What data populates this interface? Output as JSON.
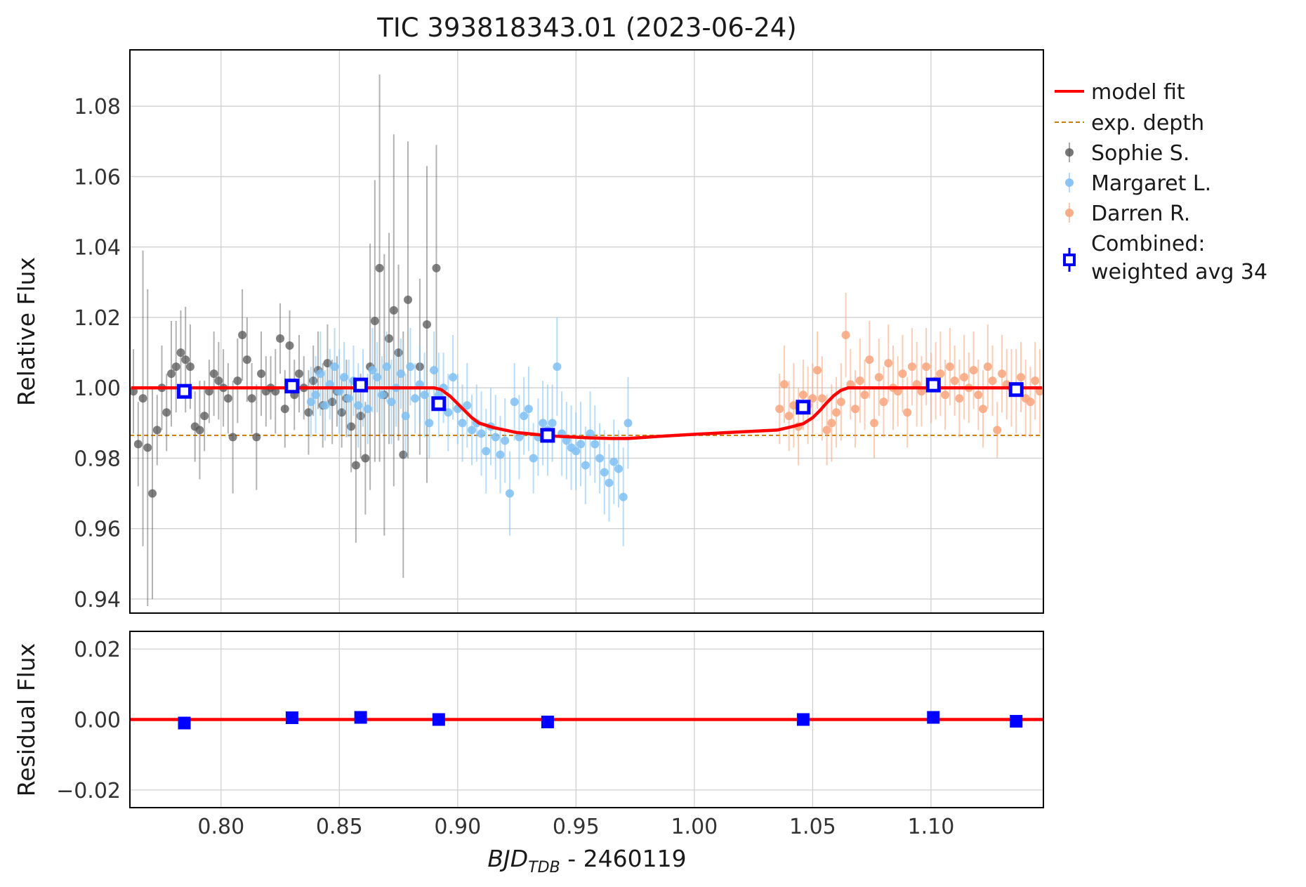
{
  "chart_data": {
    "type": "scatter",
    "title": "TIC 393818343.01  (2023-06-24)",
    "xlabel": {
      "main": "BJD",
      "sub": "TDB",
      "rest": " - 2460119"
    },
    "ylabel_top": "Relative Flux",
    "ylabel_bottom": "Residual Flux",
    "xlim": [
      0.7615,
      1.1475
    ],
    "ylim_top": [
      0.936,
      1.096
    ],
    "ylim_bottom": [
      -0.025,
      0.025
    ],
    "xticks": [
      0.8,
      0.85,
      0.9,
      0.95,
      1.0,
      1.05,
      1.1
    ],
    "xtick_labels": [
      "0.80",
      "0.85",
      "0.90",
      "0.95",
      "1.00",
      "1.05",
      "1.10"
    ],
    "yticks_top": [
      0.94,
      0.96,
      0.98,
      1.0,
      1.02,
      1.04,
      1.06,
      1.08
    ],
    "ytick_labels_top": [
      "0.94",
      "0.96",
      "0.98",
      "1.00",
      "1.02",
      "1.04",
      "1.06",
      "1.08"
    ],
    "yticks_bottom": [
      -0.02,
      0.0,
      0.02
    ],
    "ytick_labels_bottom": [
      "−0.02",
      "0.00",
      "0.02"
    ],
    "grid": true,
    "legend_position": "outside right",
    "expected_depth": 0.9865,
    "legend": [
      {
        "label": "model fit",
        "kind": "line",
        "color": "#ff0000"
      },
      {
        "label": "exp. depth",
        "kind": "dashed",
        "color": "#cc7a00"
      },
      {
        "label": "Sophie S.",
        "kind": "point",
        "color": "#555555"
      },
      {
        "label": "Margaret L.",
        "kind": "point",
        "color": "#7fbff2"
      },
      {
        "label": "Darren R.",
        "kind": "point",
        "color": "#f7a47c"
      },
      {
        "label": "Combined:",
        "label2": "weighted avg 34",
        "kind": "square",
        "color": "#0000ff"
      }
    ],
    "model_fit": {
      "color": "#ff0000",
      "x": [
        0.762,
        0.89,
        0.893,
        0.897,
        0.9,
        0.903,
        0.906,
        0.909,
        0.915,
        0.925,
        0.94,
        0.955,
        0.965,
        0.972,
        0.985,
        1.0,
        1.02,
        1.035,
        1.041,
        1.046,
        1.05,
        1.053,
        1.056,
        1.059,
        1.062,
        1.065,
        1.068,
        1.147
      ],
      "y": [
        1.0,
        1.0,
        0.9995,
        0.9975,
        0.9955,
        0.9935,
        0.9915,
        0.99,
        0.9887,
        0.9873,
        0.9863,
        0.9858,
        0.9856,
        0.9856,
        0.9862,
        0.9868,
        0.9875,
        0.988,
        0.9889,
        0.9898,
        0.9915,
        0.9935,
        0.9958,
        0.9978,
        0.9993,
        1.0,
        1.0,
        1.0
      ]
    },
    "series": [
      {
        "name": "Sophie S.",
        "color": "#555555",
        "x": [
          0.763,
          0.765,
          0.767,
          0.769,
          0.771,
          0.773,
          0.775,
          0.777,
          0.779,
          0.781,
          0.783,
          0.785,
          0.787,
          0.789,
          0.791,
          0.793,
          0.795,
          0.797,
          0.799,
          0.801,
          0.803,
          0.805,
          0.807,
          0.809,
          0.811,
          0.813,
          0.815,
          0.817,
          0.819,
          0.821,
          0.823,
          0.825,
          0.827,
          0.829,
          0.831,
          0.833,
          0.835,
          0.837,
          0.839,
          0.841,
          0.843,
          0.845,
          0.847,
          0.849,
          0.851,
          0.853,
          0.855,
          0.857,
          0.859,
          0.861,
          0.863,
          0.865,
          0.867,
          0.869,
          0.871,
          0.873,
          0.875,
          0.877,
          0.879,
          0.884,
          0.887,
          0.891
        ],
        "y": [
          0.999,
          0.984,
          0.997,
          0.983,
          0.97,
          0.988,
          1.0,
          0.993,
          1.004,
          1.006,
          1.01,
          1.008,
          1.006,
          0.989,
          0.988,
          0.992,
          0.999,
          1.004,
          1.002,
          1.0,
          0.997,
          0.986,
          1.002,
          1.015,
          1.008,
          0.997,
          0.986,
          1.004,
          0.999,
          1.0,
          0.999,
          1.014,
          0.994,
          1.012,
          0.998,
          1.004,
          1.0,
          0.993,
          1.002,
          1.005,
          0.995,
          1.007,
          0.996,
          0.999,
          0.993,
          0.997,
          0.989,
          0.978,
          0.992,
          0.98,
          1.006,
          1.019,
          1.034,
          0.998,
          1.014,
          1.022,
          1.01,
          0.981,
          1.025,
          1.006,
          1.018,
          1.034
        ],
        "err": [
          0.012,
          0.012,
          0.042,
          0.045,
          0.03,
          0.01,
          0.012,
          0.011,
          0.015,
          0.013,
          0.012,
          0.015,
          0.012,
          0.01,
          0.014,
          0.01,
          0.009,
          0.012,
          0.011,
          0.011,
          0.01,
          0.016,
          0.012,
          0.013,
          0.012,
          0.01,
          0.015,
          0.012,
          0.01,
          0.009,
          0.012,
          0.01,
          0.011,
          0.01,
          0.01,
          0.011,
          0.009,
          0.012,
          0.01,
          0.011,
          0.012,
          0.011,
          0.012,
          0.01,
          0.01,
          0.011,
          0.013,
          0.022,
          0.012,
          0.016,
          0.035,
          0.04,
          0.055,
          0.04,
          0.03,
          0.05,
          0.025,
          0.035,
          0.045,
          0.025,
          0.045,
          0.035
        ]
      },
      {
        "name": "Margaret L.",
        "color": "#7fbff2",
        "x": [
          0.838,
          0.84,
          0.842,
          0.844,
          0.846,
          0.848,
          0.85,
          0.852,
          0.854,
          0.856,
          0.858,
          0.86,
          0.862,
          0.864,
          0.866,
          0.868,
          0.87,
          0.872,
          0.874,
          0.876,
          0.878,
          0.88,
          0.882,
          0.884,
          0.886,
          0.888,
          0.89,
          0.892,
          0.894,
          0.896,
          0.898,
          0.9,
          0.902,
          0.904,
          0.906,
          0.908,
          0.91,
          0.912,
          0.914,
          0.916,
          0.918,
          0.92,
          0.922,
          0.924,
          0.926,
          0.928,
          0.93,
          0.932,
          0.934,
          0.936,
          0.938,
          0.94,
          0.942,
          0.944,
          0.946,
          0.948,
          0.95,
          0.952,
          0.954,
          0.956,
          0.958,
          0.96,
          0.962,
          0.964,
          0.966,
          0.968,
          0.97,
          0.972
        ],
        "y": [
          0.996,
          0.998,
          1.004,
          0.995,
          1.001,
          1.006,
          0.999,
          1.003,
          0.997,
          1.002,
          0.995,
          1.0,
          0.994,
          1.005,
          1.003,
          0.998,
          1.006,
          0.996,
          1.0,
          1.004,
          0.992,
          1.006,
          0.997,
          1.001,
          0.998,
          0.99,
          1.005,
          0.998,
          1.0,
          0.993,
          1.003,
          0.994,
          0.99,
          0.995,
          0.988,
          0.99,
          0.987,
          0.982,
          0.989,
          0.986,
          0.981,
          0.985,
          0.97,
          0.996,
          0.986,
          0.992,
          0.994,
          0.98,
          0.986,
          0.99,
          0.988,
          0.99,
          1.006,
          0.987,
          0.985,
          0.983,
          0.982,
          0.984,
          0.978,
          0.987,
          0.984,
          0.98,
          0.976,
          0.973,
          0.979,
          0.977,
          0.969,
          0.99
        ],
        "err": [
          0.01,
          0.011,
          0.012,
          0.01,
          0.01,
          0.011,
          0.012,
          0.01,
          0.011,
          0.01,
          0.012,
          0.011,
          0.01,
          0.012,
          0.01,
          0.011,
          0.01,
          0.012,
          0.011,
          0.01,
          0.012,
          0.011,
          0.01,
          0.011,
          0.012,
          0.01,
          0.011,
          0.012,
          0.01,
          0.011,
          0.012,
          0.01,
          0.011,
          0.012,
          0.01,
          0.011,
          0.012,
          0.012,
          0.011,
          0.012,
          0.011,
          0.012,
          0.012,
          0.011,
          0.012,
          0.011,
          0.012,
          0.01,
          0.011,
          0.012,
          0.013,
          0.011,
          0.014,
          0.012,
          0.011,
          0.012,
          0.011,
          0.012,
          0.011,
          0.012,
          0.011,
          0.01,
          0.012,
          0.011,
          0.012,
          0.011,
          0.014,
          0.013
        ]
      },
      {
        "name": "Darren R.",
        "color": "#f7a47c",
        "x": [
          1.036,
          1.038,
          1.04,
          1.042,
          1.044,
          1.046,
          1.048,
          1.05,
          1.052,
          1.054,
          1.056,
          1.058,
          1.06,
          1.062,
          1.064,
          1.066,
          1.068,
          1.07,
          1.072,
          1.074,
          1.076,
          1.078,
          1.08,
          1.082,
          1.084,
          1.086,
          1.088,
          1.09,
          1.092,
          1.094,
          1.096,
          1.098,
          1.1,
          1.102,
          1.104,
          1.106,
          1.108,
          1.11,
          1.112,
          1.114,
          1.116,
          1.118,
          1.12,
          1.122,
          1.124,
          1.126,
          1.128,
          1.13,
          1.132,
          1.134,
          1.136,
          1.138,
          1.14,
          1.142,
          1.144,
          1.146
        ],
        "y": [
          0.994,
          1.001,
          0.992,
          0.995,
          0.989,
          0.998,
          0.995,
          0.997,
          1.005,
          0.997,
          0.988,
          0.99,
          0.993,
          0.996,
          1.015,
          1.001,
          0.994,
          1.002,
          0.998,
          1.008,
          0.99,
          1.003,
          0.996,
          1.007,
          1.0,
          0.999,
          1.004,
          0.993,
          1.006,
          1.001,
          0.999,
          1.006,
          1.0,
          1.002,
          1.004,
          0.998,
          1.006,
          1.002,
          0.997,
          1.003,
          1.0,
          1.005,
          0.998,
          0.994,
          1.006,
          1.002,
          0.988,
          1.004,
          1.001,
          1.0,
          0.999,
          1.003,
          0.997,
          0.996,
          1.002,
          0.999
        ],
        "err": [
          0.01,
          0.011,
          0.01,
          0.012,
          0.011,
          0.01,
          0.011,
          0.01,
          0.011,
          0.012,
          0.01,
          0.011,
          0.01,
          0.011,
          0.012,
          0.01,
          0.011,
          0.012,
          0.01,
          0.011,
          0.01,
          0.011,
          0.01,
          0.011,
          0.012,
          0.01,
          0.011,
          0.01,
          0.011,
          0.012,
          0.01,
          0.011,
          0.01,
          0.011,
          0.012,
          0.01,
          0.011,
          0.01,
          0.011,
          0.012,
          0.01,
          0.011,
          0.01,
          0.011,
          0.012,
          0.01,
          0.008,
          0.011,
          0.01,
          0.011,
          0.012,
          0.01,
          0.011,
          0.01,
          0.011,
          0.012
        ]
      }
    ],
    "combined": {
      "color": "#0000ff",
      "x": [
        0.7845,
        0.83,
        0.859,
        0.892,
        0.938,
        1.046,
        1.101,
        1.136
      ],
      "y": [
        0.999,
        1.0005,
        1.0008,
        0.9955,
        0.9865,
        0.9945,
        1.0008,
        0.9995
      ],
      "err": [
        0.0015,
        0.0015,
        0.0015,
        0.0015,
        0.0015,
        0.0015,
        0.0015,
        0.0015
      ],
      "residual_y": [
        -0.001,
        0.0005,
        0.0006,
        0.0,
        -0.0007,
        0.0,
        0.0006,
        -0.0005
      ]
    }
  }
}
